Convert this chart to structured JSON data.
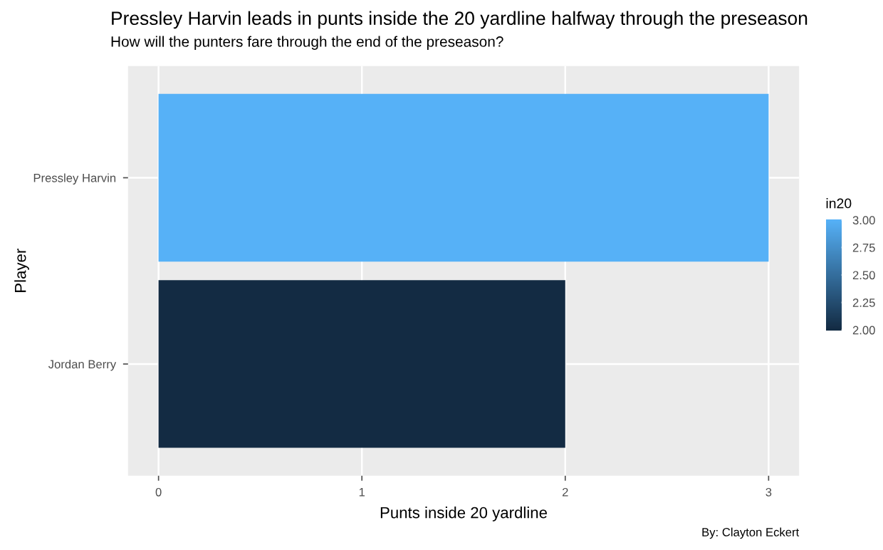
{
  "chart_data": {
    "type": "bar",
    "orientation": "horizontal",
    "title": "Pressley Harvin leads in punts inside the 20 yardline halfway through the preseason",
    "subtitle": "How will the punters fare through the end of the preseason?",
    "xlabel": "Punts inside 20 yardline",
    "ylabel": "Player",
    "categories": [
      "Pressley Harvin",
      "Jordan Berry"
    ],
    "values": [
      3,
      2
    ],
    "colors": [
      "#56b1f7",
      "#132b43"
    ],
    "clabel": "in20",
    "clim": [
      2,
      3
    ],
    "cticks": [
      {
        "value": 2,
        "label": "2.00"
      },
      {
        "value": 2.25,
        "label": "2.25"
      },
      {
        "value": 2.5,
        "label": "2.50"
      },
      {
        "value": 2.75,
        "label": "2.75"
      },
      {
        "value": 3,
        "label": "3.00"
      }
    ],
    "xlim": [
      -0.15,
      3.15
    ],
    "xticks": [
      0,
      1,
      2,
      3
    ],
    "grid": true,
    "annotations": [
      "By: Clayton Eckert"
    ]
  }
}
